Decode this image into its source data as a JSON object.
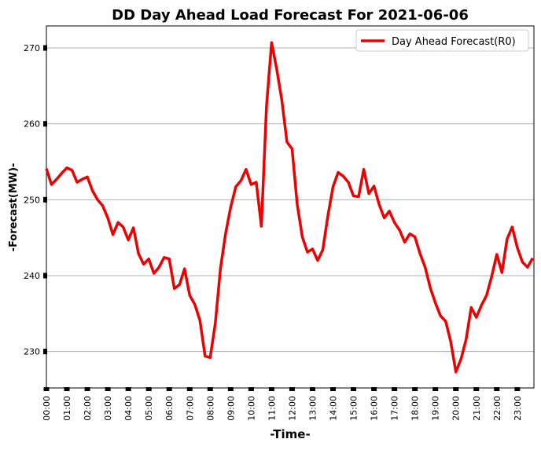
{
  "chart_data": {
    "type": "line",
    "title": "DD Day Ahead Load Forecast For 2021-06-06",
    "x_label": "-Time-",
    "y_label": "-Forecast(MW)-",
    "categories": [
      "00:00",
      null,
      null,
      null,
      "01:00",
      null,
      null,
      null,
      "02:00",
      null,
      null,
      null,
      "03:00",
      null,
      null,
      null,
      "04:00",
      null,
      null,
      null,
      "05:00",
      null,
      null,
      null,
      "06:00",
      null,
      null,
      null,
      "07:00",
      null,
      null,
      null,
      "08:00",
      null,
      null,
      null,
      "09:00",
      null,
      null,
      null,
      "10:00",
      null,
      null,
      null,
      "11:00",
      null,
      null,
      null,
      "12:00",
      null,
      null,
      null,
      "13:00",
      null,
      null,
      null,
      "14:00",
      null,
      null,
      null,
      "15:00",
      null,
      null,
      null,
      "16:00",
      null,
      null,
      null,
      "17:00",
      null,
      null,
      null,
      "18:00",
      null,
      null,
      null,
      "19:00",
      null,
      null,
      null,
      "20:00",
      null,
      null,
      null,
      "21:00",
      null,
      null,
      null,
      "22:00",
      null,
      null,
      null,
      "23:00",
      null,
      null,
      null
    ],
    "series": [
      {
        "name": "Day Ahead Forecast(R0)",
        "color": "#ee0000",
        "values": [
          254.1,
          252.0,
          252.7,
          253.5,
          254.2,
          253.9,
          252.3,
          252.7,
          253.0,
          251.2,
          250.0,
          249.2,
          247.6,
          245.4,
          247.0,
          246.4,
          244.7,
          246.3,
          242.9,
          241.5,
          242.2,
          240.3,
          241.1,
          242.4,
          242.2,
          238.3,
          238.8,
          240.9,
          237.4,
          236.2,
          234.1,
          229.4,
          229.2,
          233.7,
          240.9,
          245.5,
          249.0,
          251.7,
          252.5,
          254.0,
          252.0,
          252.3,
          246.5,
          262.3,
          270.7,
          267.2,
          263.1,
          257.6,
          256.7,
          249.4,
          245.1,
          243.1,
          243.5,
          242.0,
          243.4,
          247.9,
          251.7,
          253.6,
          253.1,
          252.3,
          250.5,
          250.4,
          254.0,
          250.8,
          251.8,
          249.4,
          247.6,
          248.5,
          247.0,
          246.0,
          244.4,
          245.5,
          245.1,
          242.9,
          241.1,
          238.4,
          236.4,
          234.7,
          234.0,
          231.3,
          227.3,
          229.0,
          231.6,
          235.8,
          234.5,
          236.1,
          237.4,
          239.9,
          242.8,
          240.4,
          244.8,
          246.4,
          243.7,
          241.8,
          241.1,
          242.3
        ]
      }
    ],
    "ylim": [
      225.2,
      272.9
    ],
    "yticks": [
      230,
      240,
      250,
      260,
      270
    ],
    "grid": true,
    "legend": "upper right"
  }
}
